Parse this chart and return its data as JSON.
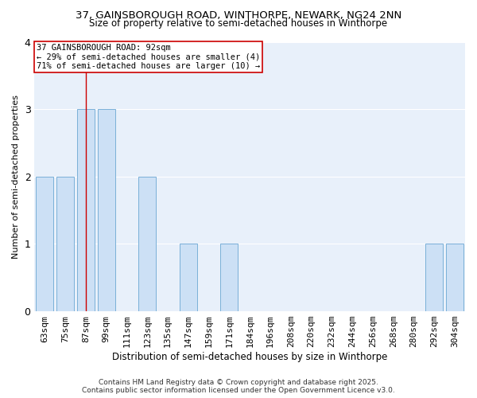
{
  "title_line1": "37, GAINSBOROUGH ROAD, WINTHORPE, NEWARK, NG24 2NN",
  "title_line2": "Size of property relative to semi-detached houses in Winthorpe",
  "xlabel": "Distribution of semi-detached houses by size in Winthorpe",
  "ylabel": "Number of semi-detached properties",
  "categories": [
    "63sqm",
    "75sqm",
    "87sqm",
    "99sqm",
    "111sqm",
    "123sqm",
    "135sqm",
    "147sqm",
    "159sqm",
    "171sqm",
    "184sqm",
    "196sqm",
    "208sqm",
    "220sqm",
    "232sqm",
    "244sqm",
    "256sqm",
    "268sqm",
    "280sqm",
    "292sqm",
    "304sqm"
  ],
  "values": [
    2,
    2,
    3,
    3,
    0,
    2,
    0,
    1,
    0,
    1,
    0,
    0,
    0,
    0,
    0,
    0,
    0,
    0,
    0,
    1,
    1
  ],
  "bar_color": "#cce0f5",
  "bar_edge_color": "#7ab0d8",
  "highlight_bar_index": 2,
  "highlight_line_color": "#cc0000",
  "annotation_text": "37 GAINSBOROUGH ROAD: 92sqm\n← 29% of semi-detached houses are smaller (4)\n71% of semi-detached houses are larger (10) →",
  "annotation_box_color": "#ffffff",
  "annotation_box_edge": "#cc0000",
  "ylim": [
    0,
    4
  ],
  "yticks": [
    0,
    1,
    2,
    3,
    4
  ],
  "footer_line1": "Contains HM Land Registry data © Crown copyright and database right 2025.",
  "footer_line2": "Contains public sector information licensed under the Open Government Licence v3.0.",
  "background_color": "#ffffff",
  "plot_bg_color": "#e8f0fa",
  "grid_color": "#ffffff",
  "title_fontsize": 9.5,
  "subtitle_fontsize": 8.5,
  "xlabel_fontsize": 8.5,
  "ylabel_fontsize": 8,
  "tick_fontsize": 8,
  "annotation_fontsize": 7.5,
  "footer_fontsize": 6.5
}
